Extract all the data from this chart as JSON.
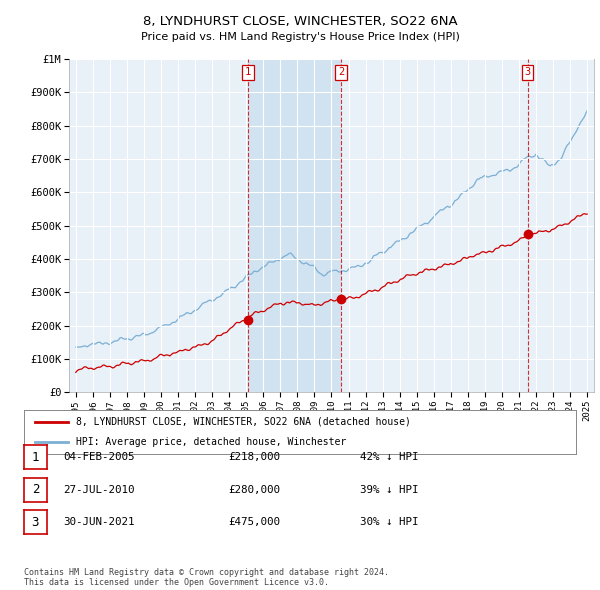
{
  "title": "8, LYNDHURST CLOSE, WINCHESTER, SO22 6NA",
  "subtitle": "Price paid vs. HM Land Registry's House Price Index (HPI)",
  "legend_line1": "8, LYNDHURST CLOSE, WINCHESTER, SO22 6NA (detached house)",
  "legend_line2": "HPI: Average price, detached house, Winchester",
  "table_rows": [
    {
      "num": "1",
      "date": "04-FEB-2005",
      "price": "£218,000",
      "hpi": "42% ↓ HPI"
    },
    {
      "num": "2",
      "date": "27-JUL-2010",
      "price": "£280,000",
      "hpi": "39% ↓ HPI"
    },
    {
      "num": "3",
      "date": "30-JUN-2021",
      "price": "£475,000",
      "hpi": "30% ↓ HPI"
    }
  ],
  "footnote": "Contains HM Land Registry data © Crown copyright and database right 2024.\nThis data is licensed under the Open Government Licence v3.0.",
  "sale_years": [
    2005.09,
    2010.57,
    2021.5
  ],
  "sale_prices": [
    218000,
    280000,
    475000
  ],
  "sale_labels": [
    "1",
    "2",
    "3"
  ],
  "ylim": [
    0,
    1000000
  ],
  "yticks": [
    0,
    100000,
    200000,
    300000,
    400000,
    500000,
    600000,
    700000,
    800000,
    900000,
    1000000
  ],
  "ytick_labels": [
    "£0",
    "£100K",
    "£200K",
    "£300K",
    "£400K",
    "£500K",
    "£600K",
    "£700K",
    "£800K",
    "£900K",
    "£1M"
  ],
  "hpi_color": "#7bafd4",
  "price_color": "#cc0000",
  "vline_color": "#cc0000",
  "shade_color": "#cce0f0",
  "background_color": "#ffffff",
  "plot_bg_color": "#e8f0f8",
  "grid_color": "#ffffff"
}
